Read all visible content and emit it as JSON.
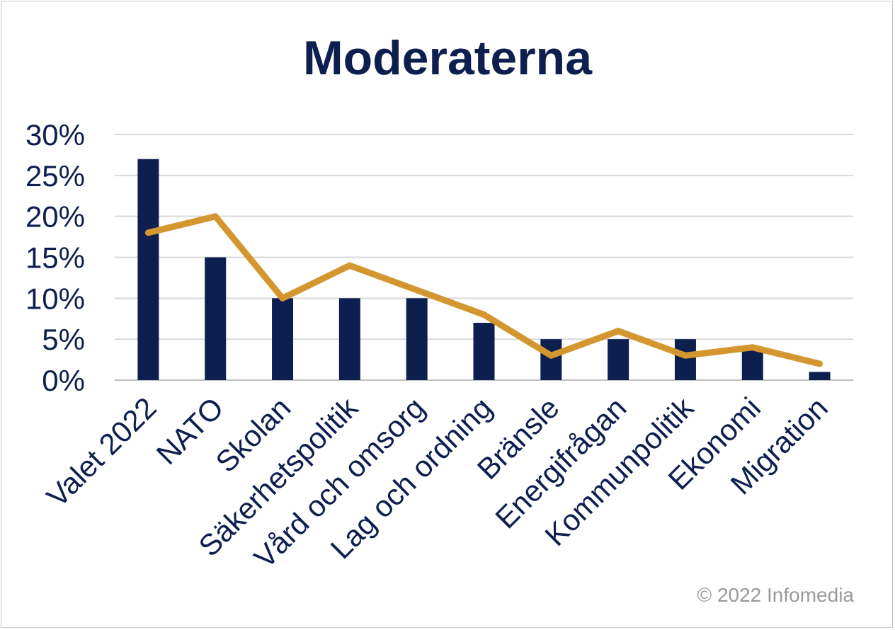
{
  "chart_data": {
    "type": "bar",
    "title": "Moderaterna",
    "xlabel": "",
    "ylabel": "",
    "ylim": [
      0,
      30
    ],
    "y_ticks": [
      "0%",
      "5%",
      "10%",
      "15%",
      "20%",
      "25%",
      "30%"
    ],
    "y_tick_values": [
      0,
      5,
      10,
      15,
      20,
      25,
      30
    ],
    "grid": true,
    "legend": "none",
    "categories": [
      "Valet 2022",
      "NATO",
      "Skolan",
      "Säkerhetspolitik",
      "Vård och omsorg",
      "Lag och ordning",
      "Bränsle",
      "Energifrågan",
      "Kommunpolitik",
      "Ekonomi",
      "Migration"
    ],
    "series": [
      {
        "type": "bar",
        "color": "#0d1f4f",
        "values": [
          27,
          15,
          10,
          10,
          10,
          7,
          5,
          5,
          5,
          4,
          1
        ]
      },
      {
        "type": "line",
        "color": "#d4962e",
        "values": [
          18,
          20,
          10,
          14,
          11,
          8,
          3,
          6,
          3,
          4,
          2
        ]
      }
    ],
    "colors": {
      "grid": "#d9d9d9",
      "text": "#0d1f4f"
    }
  },
  "footer": {
    "copyright": "© 2022 Infomedia"
  }
}
